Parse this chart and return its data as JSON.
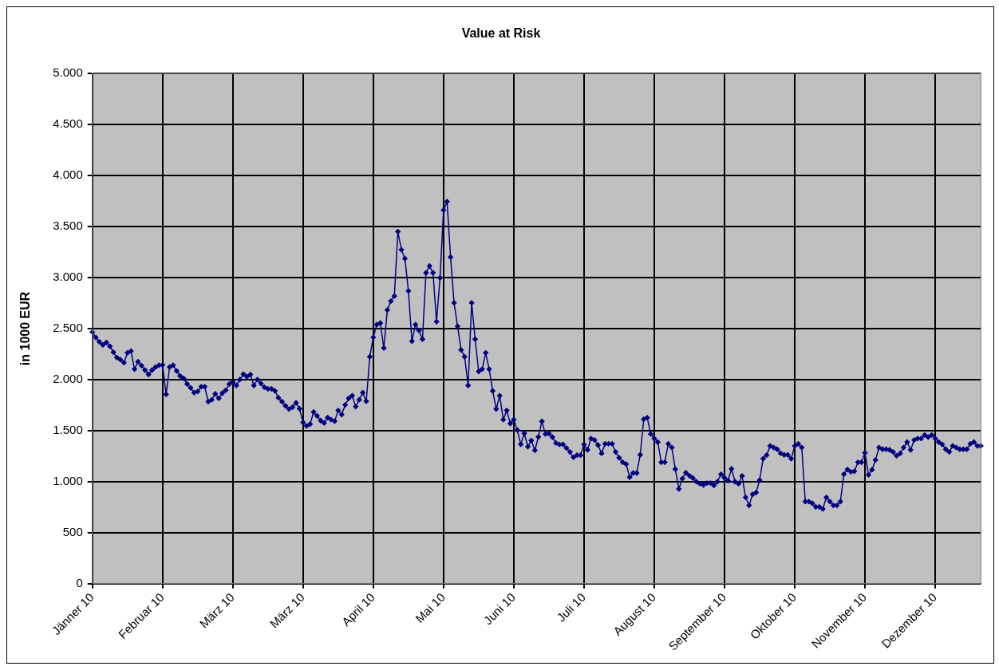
{
  "chart_data": {
    "type": "line",
    "title": "Value at Risk",
    "ylabel": "in 1000 EUR",
    "categories": [
      "Jänner 10",
      null,
      null,
      null,
      null,
      null,
      null,
      null,
      null,
      null,
      null,
      null,
      null,
      null,
      null,
      null,
      null,
      null,
      null,
      null,
      "Februar 10",
      null,
      null,
      null,
      null,
      null,
      null,
      null,
      null,
      null,
      null,
      null,
      null,
      null,
      null,
      null,
      null,
      null,
      null,
      null,
      "März 10",
      null,
      null,
      null,
      null,
      null,
      null,
      null,
      null,
      null,
      null,
      null,
      null,
      null,
      null,
      null,
      null,
      null,
      null,
      null,
      "März 10",
      null,
      null,
      null,
      null,
      null,
      null,
      null,
      null,
      null,
      null,
      null,
      null,
      null,
      null,
      null,
      null,
      null,
      null,
      null,
      "April 10",
      null,
      null,
      null,
      null,
      null,
      null,
      null,
      null,
      null,
      null,
      null,
      null,
      null,
      null,
      null,
      null,
      null,
      null,
      null,
      "Mai 10",
      null,
      null,
      null,
      null,
      null,
      null,
      null,
      null,
      null,
      null,
      null,
      null,
      null,
      null,
      null,
      null,
      null,
      null,
      null,
      "Juni 10",
      null,
      null,
      null,
      null,
      null,
      null,
      null,
      null,
      null,
      null,
      null,
      null,
      null,
      null,
      null,
      null,
      null,
      null,
      null,
      "Juli 10",
      null,
      null,
      null,
      null,
      null,
      null,
      null,
      null,
      null,
      null,
      null,
      null,
      null,
      null,
      null,
      null,
      null,
      null,
      null,
      "August 10",
      null,
      null,
      null,
      null,
      null,
      null,
      null,
      null,
      null,
      null,
      null,
      null,
      null,
      null,
      null,
      null,
      null,
      null,
      null,
      "September 10",
      null,
      null,
      null,
      null,
      null,
      null,
      null,
      null,
      null,
      null,
      null,
      null,
      null,
      null,
      null,
      null,
      null,
      null,
      null,
      "Oktober 10",
      null,
      null,
      null,
      null,
      null,
      null,
      null,
      null,
      null,
      null,
      null,
      null,
      null,
      null,
      null,
      null,
      null,
      null,
      null,
      "November 10",
      null,
      null,
      null,
      null,
      null,
      null,
      null,
      null,
      null,
      null,
      null,
      null,
      null,
      null,
      null,
      null,
      null,
      null,
      null,
      "Dezember 10",
      null,
      null,
      null,
      null,
      null,
      null,
      null,
      null,
      null,
      null,
      null,
      null,
      null
    ],
    "series": [
      {
        "color": "#000080",
        "values": [
          2465,
          2413,
          2370,
          2340,
          2364,
          2326,
          2268,
          2215,
          2195,
          2166,
          2262,
          2279,
          2102,
          2175,
          2137,
          2093,
          2050,
          2093,
          2122,
          2140,
          2143,
          1855,
          2122,
          2140,
          2084,
          2035,
          2012,
          1956,
          1918,
          1872,
          1883,
          1930,
          1930,
          1784,
          1802,
          1860,
          1816,
          1866,
          1895,
          1956,
          1977,
          1942,
          2000,
          2053,
          2029,
          2050,
          1942,
          2000,
          1962,
          1924,
          1909,
          1909,
          1889,
          1822,
          1784,
          1743,
          1711,
          1729,
          1772,
          1714,
          1580,
          1545,
          1563,
          1682,
          1644,
          1598,
          1575,
          1627,
          1607,
          1592,
          1697,
          1656,
          1752,
          1816,
          1842,
          1735,
          1802,
          1872,
          1787,
          2224,
          2414,
          2539,
          2554,
          2309,
          2682,
          2769,
          2819,
          3451,
          3273,
          3186,
          2868,
          2376,
          2539,
          2481,
          2396,
          3046,
          3113,
          3046,
          2568,
          2997,
          3661,
          3745,
          3200,
          2752,
          2522,
          2291,
          2224,
          1942,
          2752,
          2396,
          2079,
          2102,
          2262,
          2102,
          1889,
          1711,
          1842,
          1607,
          1697,
          1569,
          1607,
          1505,
          1365,
          1473,
          1342,
          1403,
          1307,
          1438,
          1591,
          1466,
          1471,
          1436,
          1378,
          1364,
          1364,
          1329,
          1291,
          1238,
          1259,
          1259,
          1364,
          1311,
          1422,
          1407,
          1358,
          1276,
          1370,
          1370,
          1370,
          1291,
          1233,
          1189,
          1171,
          1043,
          1084,
          1084,
          1262,
          1611,
          1626,
          1466,
          1422,
          1387,
          1189,
          1189,
          1370,
          1334,
          1122,
          927,
          1029,
          1087,
          1058,
          1034,
          999,
          979,
          967,
          985,
          985,
          962,
          999,
          1072,
          1037,
          1008,
          1125,
          999,
          979,
          1055,
          845,
          767,
          875,
          892,
          1014,
          1224,
          1259,
          1349,
          1334,
          1317,
          1276,
          1262,
          1262,
          1224,
          1349,
          1370,
          1334,
          804,
          804,
          787,
          752,
          752,
          731,
          845,
          804,
          767,
          767,
          804,
          1072,
          1119,
          1095,
          1101,
          1189,
          1189,
          1282,
          1066,
          1116,
          1212,
          1334,
          1317,
          1317,
          1311,
          1291,
          1253,
          1276,
          1334,
          1387,
          1311,
          1407,
          1422,
          1422,
          1457,
          1436,
          1457,
          1422,
          1387,
          1364,
          1317,
          1291,
          1349,
          1334,
          1317,
          1317,
          1317,
          1370,
          1387,
          1349,
          1349
        ]
      }
    ],
    "ylim": [
      0,
      5000
    ],
    "yticks": [
      0,
      500,
      {
        "value": 1000,
        "label": "1.000"
      },
      {
        "value": 1500,
        "label": "1.500"
      },
      {
        "value": 2000,
        "label": "2.000"
      },
      {
        "value": 2500,
        "label": "2.500"
      },
      {
        "value": 3000,
        "label": "3.000"
      },
      {
        "value": 3500,
        "label": "3.500"
      },
      {
        "value": 4000,
        "label": "4.000"
      },
      {
        "value": 4500,
        "label": "4.500"
      },
      {
        "value": 5000,
        "label": "5.000"
      }
    ],
    "grid": true,
    "marker": "diamond",
    "line_style": "solid",
    "legend": false
  }
}
